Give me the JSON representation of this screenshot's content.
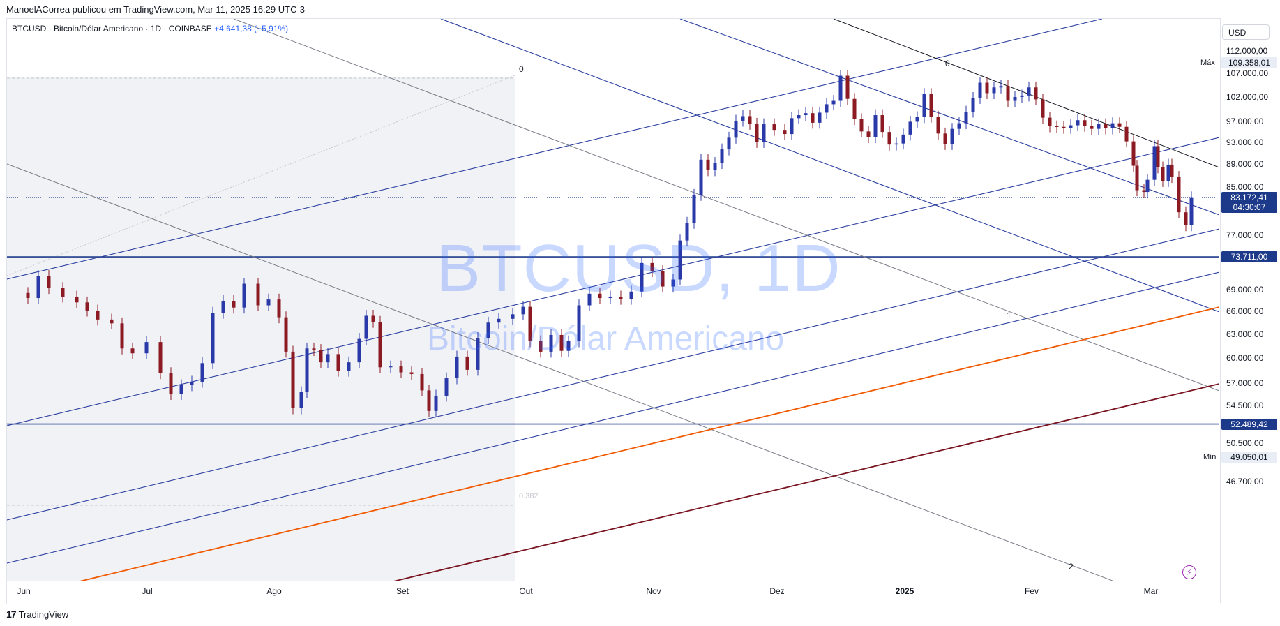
{
  "header": {
    "caption": "ManoelACorrea publicou em TradingView.com, Mar 11, 2025 16:29 UTC-3"
  },
  "legend": {
    "symbol": "BTCUSD · Bitcoin/Dólar Americano · 1D · COINBASE",
    "change": "+4.641,38 (+5,91%)"
  },
  "watermark": {
    "line1": "BTCUSD, 1D",
    "line2": "Bitcoin/Dólar Americano"
  },
  "price_scale": {
    "currency": "USD",
    "max_tag": "Máx",
    "min_tag": "Mín"
  },
  "chart_data": {
    "type": "candlestick",
    "symbol": "BTCUSD",
    "timeframe": "1D",
    "exchange": "COINBASE",
    "currency": "USD",
    "x_labels": [
      "Jun",
      "Jul",
      "Ago",
      "Set",
      "Out",
      "Nov",
      "Dez",
      "2025",
      "Fev",
      "Mar"
    ],
    "y_ticks": [
      "112.000,00",
      "107.000,00",
      "102.000,00",
      "97.000,00",
      "93.000,00",
      "89.000,00",
      "85.000,00",
      "77.000,00",
      "69.000,00",
      "66.000,00",
      "63.000,00",
      "60.000,00",
      "57.000,00",
      "54.500,00",
      "50.500,00",
      "46.700,00"
    ],
    "y_tick_values": [
      112000,
      107000,
      102000,
      97000,
      93000,
      89000,
      85000,
      77000,
      69000,
      66000,
      63000,
      60000,
      57000,
      54500,
      50500,
      46700
    ],
    "y_scale": "log",
    "ylim": [
      44800,
      120500
    ],
    "price_labels": [
      {
        "text": "109.358,01",
        "value": 109358.01,
        "style": "light",
        "tag": "Máx"
      },
      {
        "text": "83.172,41",
        "value": 83172.41,
        "style": "blue",
        "sub": "04:30:07"
      },
      {
        "text": "73.711,00",
        "value": 73711.0,
        "style": "blue"
      },
      {
        "text": "52.489,42",
        "value": 52489.42,
        "style": "blue"
      },
      {
        "text": "49.050,01",
        "value": 49050.01,
        "style": "light",
        "tag": "Mín"
      }
    ],
    "horizontal_levels": [
      73711.0,
      52489.42
    ],
    "current_price": 83172.41,
    "fib_labels": [
      "0",
      "0",
      "1",
      "2",
      "0.382"
    ],
    "colors": {
      "up": "#2939a7",
      "down": "#8b1a22",
      "channel": "#2b3fa0",
      "orange": "#f05a00",
      "maroon": "#7a1420",
      "gray": "#787b86"
    }
  },
  "footer": {
    "brand": "TradingView"
  }
}
